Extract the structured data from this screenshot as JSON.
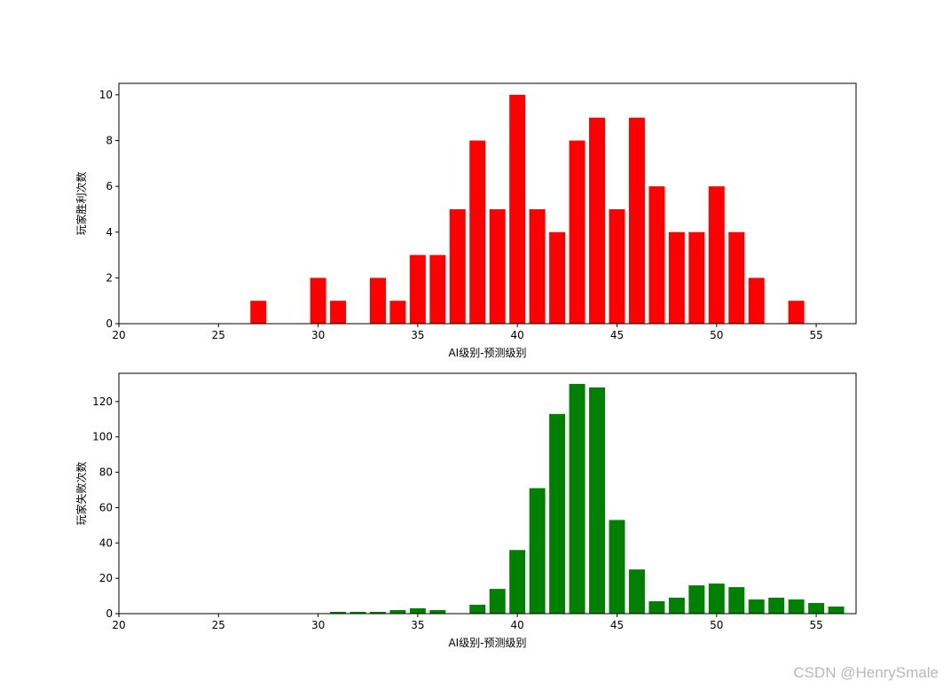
{
  "chart_data": [
    {
      "type": "bar",
      "color": "#ff0000",
      "xlabel": "AI级别-预测级别",
      "ylabel": "玩家胜利次数",
      "xlim": [
        20,
        57
      ],
      "ylim": [
        0,
        10.5
      ],
      "xticks": [
        20,
        25,
        30,
        35,
        40,
        45,
        50,
        55
      ],
      "yticks": [
        0,
        2,
        4,
        6,
        8,
        10
      ],
      "x": [
        27,
        30,
        31,
        33,
        34,
        35,
        36,
        37,
        38,
        39,
        40,
        41,
        42,
        43,
        44,
        45,
        46,
        47,
        48,
        49,
        50,
        51,
        52,
        54
      ],
      "values": [
        1,
        2,
        1,
        2,
        1,
        3,
        3,
        5,
        8,
        5,
        10,
        5,
        4,
        8,
        9,
        5,
        9,
        6,
        4,
        4,
        6,
        4,
        2,
        1
      ]
    },
    {
      "type": "bar",
      "color": "#008000",
      "xlabel": "AI级别-预测级别",
      "ylabel": "玩家失败次数",
      "xlim": [
        20,
        57
      ],
      "ylim": [
        0,
        136
      ],
      "xticks": [
        20,
        25,
        30,
        35,
        40,
        45,
        50,
        55
      ],
      "yticks": [
        0,
        20,
        40,
        60,
        80,
        100,
        120
      ],
      "x": [
        31,
        32,
        33,
        34,
        35,
        36,
        38,
        39,
        40,
        41,
        42,
        43,
        44,
        45,
        46,
        47,
        48,
        49,
        50,
        51,
        52,
        53,
        54,
        55,
        56
      ],
      "values": [
        1,
        1,
        1,
        2,
        3,
        2,
        5,
        14,
        36,
        71,
        113,
        130,
        128,
        53,
        25,
        7,
        9,
        16,
        17,
        15,
        8,
        9,
        8,
        6,
        4
      ]
    }
  ],
  "watermark": "CSDN @HenrySmale"
}
